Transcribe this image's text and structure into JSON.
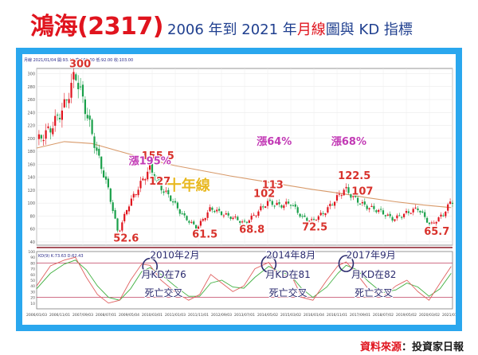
{
  "header": {
    "title_main": "鴻海(2317)",
    "title_sub_1": "2006 年到 2021 年",
    "title_sub_highlight": "月線",
    "title_sub_2": "圖與 KD 指標"
  },
  "source": {
    "label": "資料來源",
    "text": "：投資家日報"
  },
  "colors": {
    "title_red": "#e0141e",
    "title_blue": "#1f3f8f",
    "frame_blue": "#2aa7ee",
    "annotation_red": "#d8322c",
    "annotation_magenta": "#c23ab5",
    "ma_line": "#d89a6a",
    "k_line": "#e06060",
    "d_line": "#40b040",
    "candle_up": "#e0141e",
    "candle_down": "#1aa04a",
    "text_yellow": "#e8b820",
    "circle_navy": "#2a2a6e"
  },
  "chart_data": {
    "type": "line",
    "price_panel": {
      "header_text": "月線 2021/01/04 開:93.40 高:103.00 低:92.00 收:103.00",
      "y_ticks": [
        300,
        280,
        260,
        240,
        220,
        200,
        180,
        160,
        140,
        120,
        100,
        80,
        60,
        40
      ],
      "ylim": [
        35,
        308
      ],
      "series": [
        {
          "name": "十年線",
          "values": [
            [
              2006.0,
              185
            ],
            [
              2007.0,
              195
            ],
            [
              2008.0,
              192
            ],
            [
              2009.0,
              180
            ],
            [
              2010.0,
              168
            ],
            [
              2011.0,
              158
            ],
            [
              2012.0,
              150
            ],
            [
              2013.0,
              142
            ],
            [
              2014.0,
              135
            ],
            [
              2015.0,
              128
            ],
            [
              2016.0,
              121
            ],
            [
              2017.0,
              115
            ],
            [
              2018.0,
              108
            ],
            [
              2019.0,
              102
            ],
            [
              2020.0,
              97
            ],
            [
              2021.0,
              93
            ]
          ]
        },
        {
          "name": "monthly_close",
          "values": [
            [
              2006.0,
              195
            ],
            [
              2006.5,
              215
            ],
            [
              2007.0,
              250
            ],
            [
              2007.4,
              300
            ],
            [
              2007.8,
              240
            ],
            [
              2008.2,
              175
            ],
            [
              2008.6,
              120
            ],
            [
              2008.95,
              52.6
            ],
            [
              2009.3,
              95
            ],
            [
              2009.7,
              125
            ],
            [
              2010.1,
              155.5
            ],
            [
              2010.4,
              128
            ],
            [
              2010.8,
              110
            ],
            [
              2011.3,
              80
            ],
            [
              2011.8,
              61.5
            ],
            [
              2012.3,
              92
            ],
            [
              2012.8,
              82
            ],
            [
              2013.2,
              76
            ],
            [
              2013.5,
              68.8
            ],
            [
              2013.9,
              82
            ],
            [
              2014.35,
              102
            ],
            [
              2014.8,
              96
            ],
            [
              2015.2,
              100
            ],
            [
              2015.6,
              78
            ],
            [
              2015.95,
              72.5
            ],
            [
              2016.4,
              85
            ],
            [
              2016.8,
              105
            ],
            [
              2017.15,
              122.5
            ],
            [
              2017.5,
              107
            ],
            [
              2017.9,
              95
            ],
            [
              2018.4,
              88
            ],
            [
              2018.9,
              75
            ],
            [
              2019.4,
              85
            ],
            [
              2019.8,
              92
            ],
            [
              2020.25,
              65.7
            ],
            [
              2020.7,
              82
            ],
            [
              2021.0,
              103
            ]
          ]
        }
      ],
      "labels": [
        {
          "text": "300",
          "x": 2007.4,
          "y": 300,
          "style": "red"
        },
        {
          "text": "52.6",
          "x": 2008.95,
          "y": 52.6,
          "style": "red"
        },
        {
          "text": "155.5",
          "x": 2010.1,
          "y": 155.5,
          "style": "red"
        },
        {
          "text": "127",
          "x": 2010.4,
          "y": 127,
          "style": "red"
        },
        {
          "text": "61.5",
          "x": 2011.8,
          "y": 61.5,
          "style": "red"
        },
        {
          "text": "68.8",
          "x": 2013.5,
          "y": 68.8,
          "style": "red"
        },
        {
          "text": "113",
          "x": 2014.6,
          "y": 113,
          "style": "red"
        },
        {
          "text": "102",
          "x": 2014.35,
          "y": 102,
          "style": "red"
        },
        {
          "text": "72.5",
          "x": 2015.95,
          "y": 72.5,
          "style": "red"
        },
        {
          "text": "122.5",
          "x": 2017.15,
          "y": 122.5,
          "style": "red"
        },
        {
          "text": "107",
          "x": 2017.5,
          "y": 107,
          "style": "red"
        },
        {
          "text": "65.7",
          "x": 2020.25,
          "y": 65.7,
          "style": "red"
        }
      ],
      "annotations": [
        {
          "text": "漲195%",
          "style": "magenta"
        },
        {
          "text": "漲64%",
          "style": "magenta"
        },
        {
          "text": "漲68%",
          "style": "magenta"
        },
        {
          "text": "十年線",
          "style": "yellow"
        }
      ]
    },
    "kd_panel": {
      "header_text": "KD(9) K:73.63 D:62.43",
      "y_ticks": [
        100,
        90,
        80,
        70,
        60,
        50,
        40,
        30,
        20,
        10
      ],
      "ylim": [
        0,
        100
      ],
      "series": [
        {
          "name": "K",
          "values": [
            [
              2006.0,
              40
            ],
            [
              2006.5,
              75
            ],
            [
              2007.0,
              85
            ],
            [
              2007.4,
              90
            ],
            [
              2007.8,
              55
            ],
            [
              2008.2,
              25
            ],
            [
              2008.6,
              10
            ],
            [
              2009.0,
              15
            ],
            [
              2009.4,
              50
            ],
            [
              2009.8,
              78
            ],
            [
              2010.1,
              76
            ],
            [
              2010.5,
              50
            ],
            [
              2011.0,
              30
            ],
            [
              2011.5,
              15
            ],
            [
              2011.9,
              25
            ],
            [
              2012.3,
              60
            ],
            [
              2012.7,
              45
            ],
            [
              2013.1,
              30
            ],
            [
              2013.5,
              40
            ],
            [
              2013.9,
              70
            ],
            [
              2014.4,
              81
            ],
            [
              2014.8,
              55
            ],
            [
              2015.2,
              60
            ],
            [
              2015.6,
              20
            ],
            [
              2016.0,
              15
            ],
            [
              2016.5,
              50
            ],
            [
              2016.9,
              75
            ],
            [
              2017.2,
              82
            ],
            [
              2017.6,
              60
            ],
            [
              2018.0,
              35
            ],
            [
              2018.5,
              20
            ],
            [
              2019.0,
              40
            ],
            [
              2019.4,
              50
            ],
            [
              2019.8,
              30
            ],
            [
              2020.2,
              15
            ],
            [
              2020.6,
              45
            ],
            [
              2021.0,
              74
            ]
          ]
        },
        {
          "name": "D",
          "values": [
            [
              2006.0,
              35
            ],
            [
              2006.5,
              62
            ],
            [
              2007.0,
              78
            ],
            [
              2007.4,
              85
            ],
            [
              2007.8,
              68
            ],
            [
              2008.2,
              40
            ],
            [
              2008.6,
              20
            ],
            [
              2009.0,
              15
            ],
            [
              2009.4,
              35
            ],
            [
              2009.8,
              65
            ],
            [
              2010.1,
              72
            ],
            [
              2010.5,
              60
            ],
            [
              2011.0,
              40
            ],
            [
              2011.5,
              22
            ],
            [
              2011.9,
              22
            ],
            [
              2012.3,
              45
            ],
            [
              2012.7,
              50
            ],
            [
              2013.1,
              38
            ],
            [
              2013.5,
              36
            ],
            [
              2013.9,
              55
            ],
            [
              2014.4,
              74
            ],
            [
              2014.8,
              65
            ],
            [
              2015.2,
              58
            ],
            [
              2015.6,
              35
            ],
            [
              2016.0,
              20
            ],
            [
              2016.5,
              38
            ],
            [
              2016.9,
              62
            ],
            [
              2017.2,
              76
            ],
            [
              2017.6,
              68
            ],
            [
              2018.0,
              48
            ],
            [
              2018.5,
              28
            ],
            [
              2019.0,
              33
            ],
            [
              2019.4,
              45
            ],
            [
              2019.8,
              38
            ],
            [
              2020.2,
              22
            ],
            [
              2020.6,
              35
            ],
            [
              2021.0,
              62
            ]
          ]
        }
      ],
      "annotations": [
        {
          "text": "2010年2月",
          "style": "navy"
        },
        {
          "text": "月KD在76",
          "style": "navy"
        },
        {
          "text": "死亡交叉",
          "style": "navy"
        },
        {
          "text": "2014年8月",
          "style": "navy"
        },
        {
          "text": "月KD在81",
          "style": "navy"
        },
        {
          "text": "死亡交叉",
          "style": "navy"
        },
        {
          "text": "2017年9月",
          "style": "navy"
        },
        {
          "text": "月KD在82",
          "style": "navy"
        },
        {
          "text": "死亡交叉",
          "style": "navy"
        }
      ]
    },
    "x_ticks": [
      "2006/01/03",
      "2006/11/01",
      "2007/09/03",
      "2008/07/01",
      "2009/05/04",
      "2010/03/01",
      "2011/01/03",
      "2011/11/01",
      "2012/09/03",
      "2013/07/01",
      "2014/05/02",
      "2015/03/02",
      "2016/01/04",
      "2016/11/01",
      "2017/09/01",
      "2018/07/02",
      "2019/05/02",
      "2020/03/02",
      "2021/01/04"
    ],
    "xlim": [
      2006.0,
      2021.05
    ]
  }
}
